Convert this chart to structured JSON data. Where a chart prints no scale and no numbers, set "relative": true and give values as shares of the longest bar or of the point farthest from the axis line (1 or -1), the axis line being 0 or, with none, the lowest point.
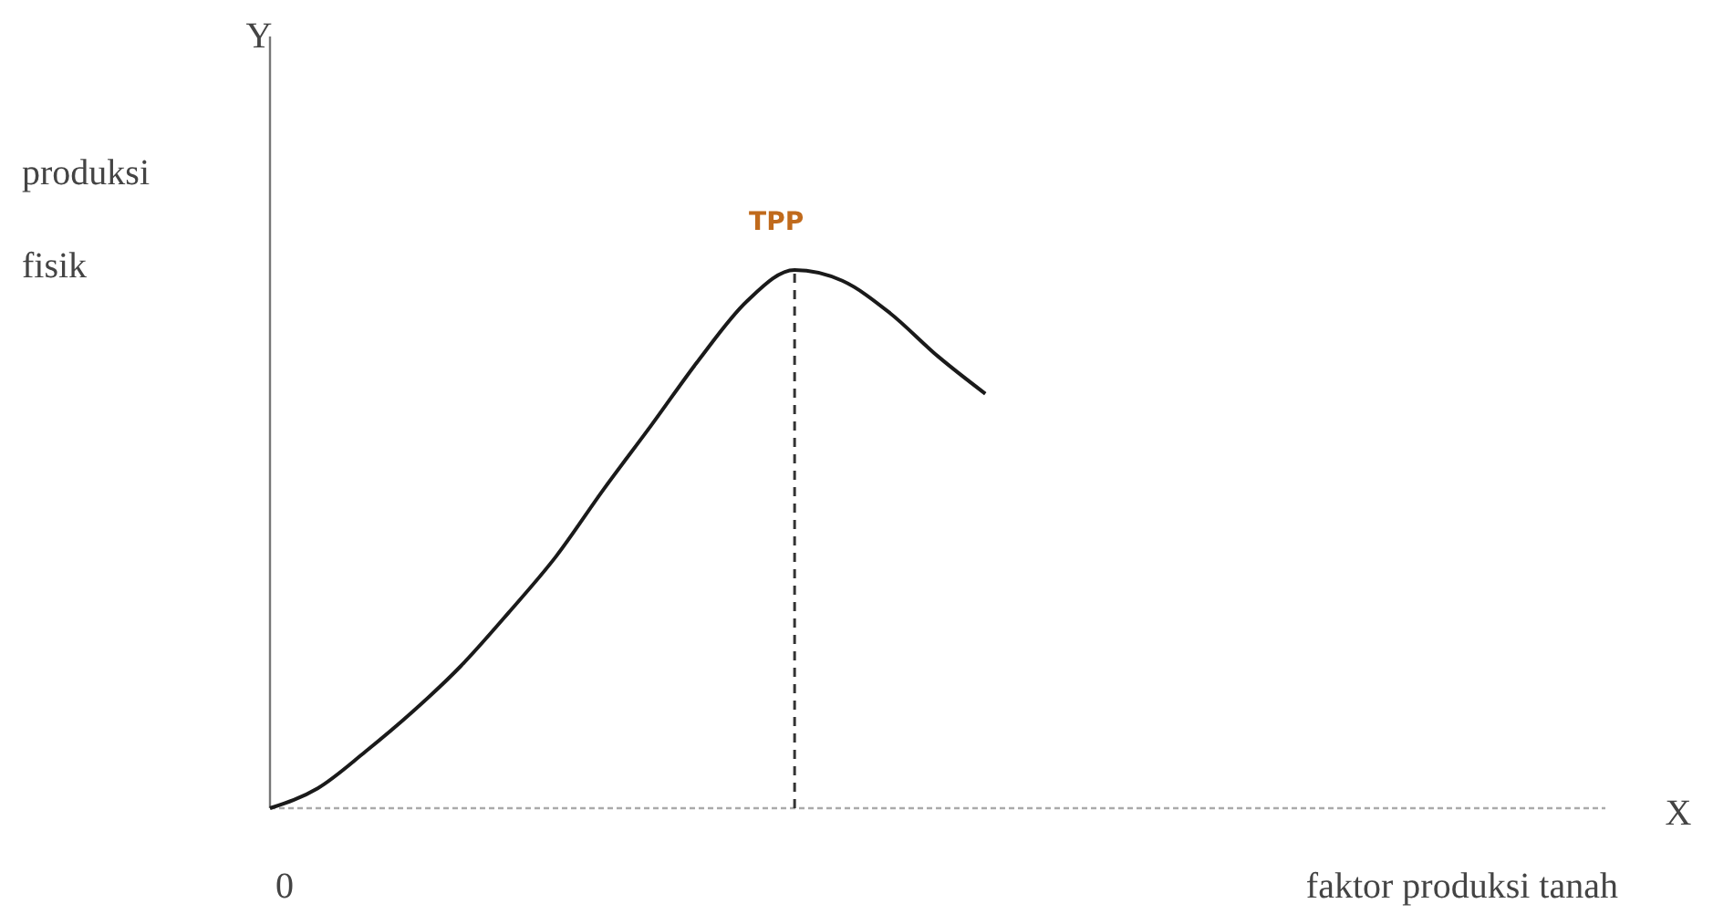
{
  "chart_data": {
    "type": "line",
    "relative": true,
    "xlabel": "faktor produksi tanah",
    "ylabel": "produksi fisik",
    "annotations": [
      "Y",
      "X",
      "0",
      "TPP"
    ],
    "categories": [
      null,
      null,
      null,
      null,
      null,
      null,
      null,
      null,
      null,
      null,
      null,
      null,
      null,
      null,
      null,
      null,
      null,
      null,
      null,
      null,
      null,
      null,
      null,
      null,
      null,
      null,
      null,
      null,
      null
    ],
    "series": [
      {
        "color": "#1a1a1a",
        "values": [
          0,
          0.037,
          0.105,
          0.18,
          0.264,
          0.363,
          0.468,
          0.593,
          0.712,
          0.834,
          0.942,
          1,
          0.98,
          0.92,
          0.84,
          0.77,
          null,
          null,
          null,
          null,
          null,
          null,
          null,
          null,
          null,
          null,
          null,
          null,
          null
        ]
      }
    ],
    "marker": "none",
    "line_style": "solid"
  }
}
